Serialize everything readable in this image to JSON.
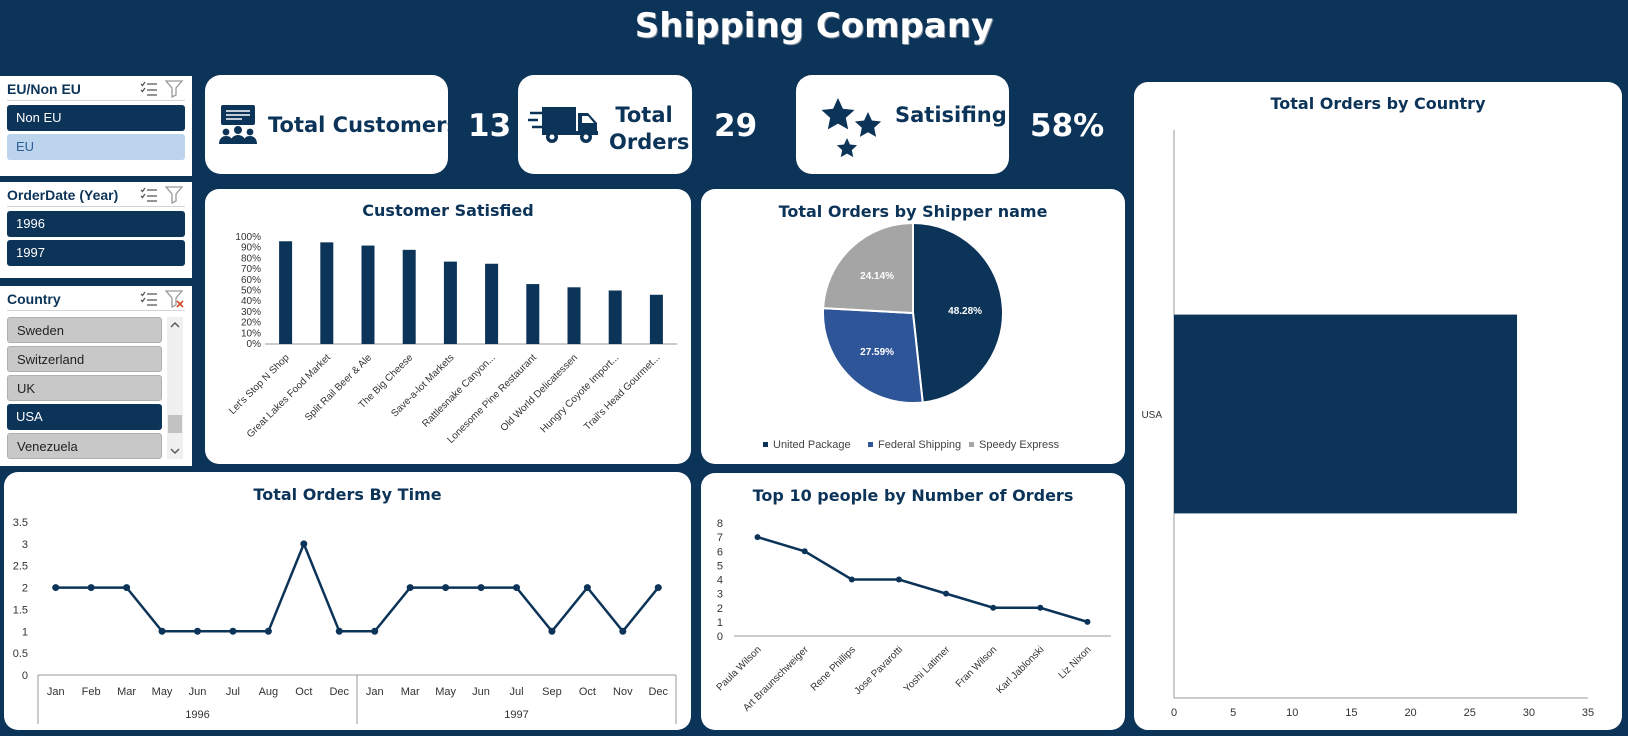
{
  "title": "Shipping Company",
  "colors": {
    "navy": "#0c3358",
    "blue": "#2e5597",
    "grey": "#a5a5a5",
    "light": "#bcd4ec"
  },
  "kpis": {
    "customers": {
      "label": "Total Customers",
      "value": "13"
    },
    "orders": {
      "label_1": "Total",
      "label_2": "Orders",
      "value": "29"
    },
    "satisfying": {
      "label": "Satisifing",
      "value": "58%"
    }
  },
  "slicers": {
    "eu": {
      "title": "EU/Non EU",
      "items": [
        "Non EU",
        "EU"
      ]
    },
    "year": {
      "title": "OrderDate (Year)",
      "items": [
        "1996",
        "1997"
      ]
    },
    "country": {
      "title": "Country",
      "items": [
        "Sweden",
        "Switzerland",
        "UK",
        "USA",
        "Venezuela"
      ]
    }
  },
  "chart_data": [
    {
      "id": "satisfied",
      "type": "bar",
      "title": "Customer Satisfied",
      "categories": [
        "Let's Stop N Shop",
        "Great Lakes Food Market",
        "Split Rail Beer & Ale",
        "The Big Cheese",
        "Save-a-lot Markets",
        "Rattlesnake Canyon...",
        "Lonesome Pine Restaurant",
        "Old World Delicatessen",
        "Hungry Coyote Import...",
        "Trail's Head Gourmet..."
      ],
      "values": [
        96,
        95,
        92,
        88,
        77,
        75,
        56,
        53,
        50,
        46
      ],
      "ylim": [
        0,
        100
      ],
      "yticks": [
        "0%",
        "10%",
        "20%",
        "30%",
        "40%",
        "50%",
        "60%",
        "70%",
        "80%",
        "90%",
        "100%"
      ]
    },
    {
      "id": "shipper",
      "type": "pie",
      "title": "Total Orders by Shipper name",
      "labels": [
        "United Package",
        "Federal Shipping",
        "Speedy Express"
      ],
      "values": [
        48.28,
        27.59,
        24.14
      ],
      "value_labels": [
        "48.28%",
        "27.59%",
        "24.14%"
      ],
      "colors": [
        "#0c3358",
        "#2e5597",
        "#a5a5a5"
      ]
    },
    {
      "id": "country",
      "type": "bar",
      "orientation": "horizontal",
      "title": "Total Orders by Country",
      "categories": [
        "USA"
      ],
      "values": [
        29
      ],
      "xlim": [
        0,
        35
      ],
      "xticks": [
        "0",
        "5",
        "10",
        "15",
        "20",
        "25",
        "30",
        "35"
      ]
    },
    {
      "id": "time",
      "type": "line",
      "title": "Total Orders By Time",
      "groups": [
        {
          "name": "1996",
          "months": [
            "Jan",
            "Feb",
            "Mar",
            "May",
            "Jun",
            "Jul",
            "Aug",
            "Oct",
            "Dec"
          ],
          "values": [
            2,
            2,
            2,
            1,
            1,
            1,
            1,
            3,
            1
          ]
        },
        {
          "name": "1997",
          "months": [
            "Jan",
            "Mar",
            "May",
            "Jun",
            "Jul",
            "Sep",
            "Oct",
            "Nov",
            "Dec"
          ],
          "values": [
            1,
            2,
            2,
            2,
            2,
            1,
            2,
            1,
            2
          ]
        }
      ],
      "ylim": [
        0,
        3.5
      ],
      "yticks": [
        "0",
        "0.5",
        "1",
        "1.5",
        "2",
        "2.5",
        "3",
        "3.5"
      ]
    },
    {
      "id": "people",
      "type": "line",
      "title": "Top 10 people by Number of Orders",
      "categories": [
        "Paula Wilson",
        "Art Braunschweiger",
        "Rene Phillips",
        "Jose Pavarotti",
        "Yoshi Latimer",
        "Fran Wilson",
        "Karl Jablonski",
        "Liz Nixon"
      ],
      "values": [
        7,
        6,
        4,
        4,
        3,
        2,
        2,
        1
      ],
      "ylim": [
        0,
        8
      ],
      "yticks": [
        "0",
        "1",
        "2",
        "3",
        "4",
        "5",
        "6",
        "7",
        "8"
      ]
    }
  ]
}
